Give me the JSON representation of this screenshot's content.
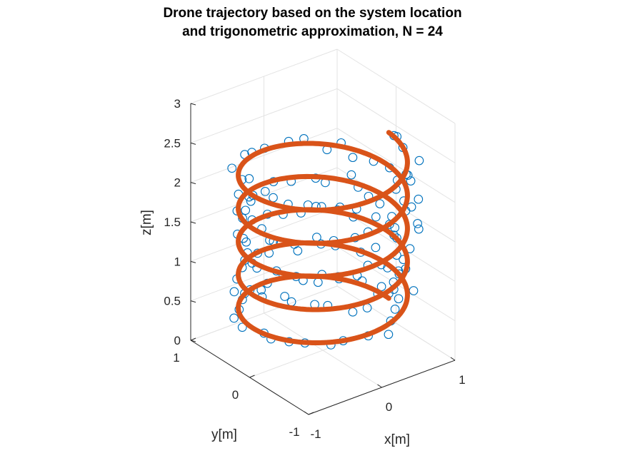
{
  "chart_data": {
    "type": "scatter-3d-line",
    "title_line1": "Drone trajectory based on the system location",
    "title_line2": "and trigonometric approximation, N = 24",
    "xlabel": "x[m]",
    "ylabel": "y[m]",
    "zlabel": "z[m]",
    "xlim": [
      -1,
      1
    ],
    "ylim": [
      -1,
      1
    ],
    "zlim": [
      0,
      3
    ],
    "x_ticks": [
      "-1",
      "0",
      "1"
    ],
    "y_ticks": [
      "-1",
      "0",
      "1"
    ],
    "z_ticks": [
      "0",
      "0.5",
      "1",
      "1.5",
      "2",
      "2.5",
      "3"
    ],
    "grid": true,
    "helix": {
      "radius": 0.9,
      "turns": 5,
      "z_start": 0.35,
      "z_end": 2.45
    },
    "series": [
      {
        "role": "measured-points",
        "marker": "circle-open",
        "color": "#0072bd",
        "noise_xy": 0.12,
        "noise_z": 0.05,
        "count": 140
      },
      {
        "role": "approximation-line",
        "color": "#d95319"
      }
    ]
  }
}
